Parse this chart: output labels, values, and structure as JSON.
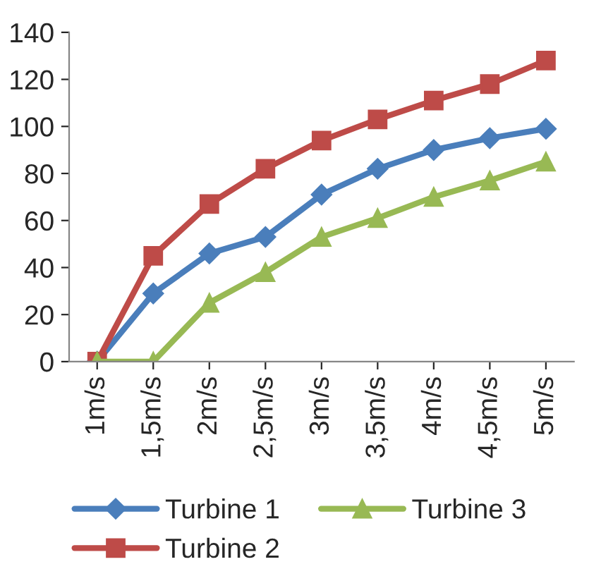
{
  "chart_data": {
    "type": "line",
    "categories": [
      "1m/s",
      "1,5m/s",
      "2m/s",
      "2,5m/s",
      "3m/s",
      "3,5m/s",
      "4m/s",
      "4,5m/s",
      "5m/s"
    ],
    "series": [
      {
        "name": "Turbine 1",
        "color": "#4a7ebb",
        "marker": "diamond",
        "values": [
          0,
          29,
          46,
          53,
          71,
          82,
          90,
          95,
          99
        ]
      },
      {
        "name": "Turbine 2",
        "color": "#be4b48",
        "marker": "square",
        "values": [
          0,
          45,
          67,
          82,
          94,
          103,
          111,
          118,
          128
        ]
      },
      {
        "name": "Turbine 3",
        "color": "#98b954",
        "marker": "triangle",
        "values": [
          0,
          0,
          25,
          38,
          53,
          61,
          70,
          77,
          85
        ]
      }
    ],
    "ylim": [
      0,
      140
    ],
    "yticks": [
      0,
      20,
      40,
      60,
      80,
      100,
      120,
      140
    ],
    "grid": false,
    "legend": "bottom",
    "line_style": "solid"
  }
}
